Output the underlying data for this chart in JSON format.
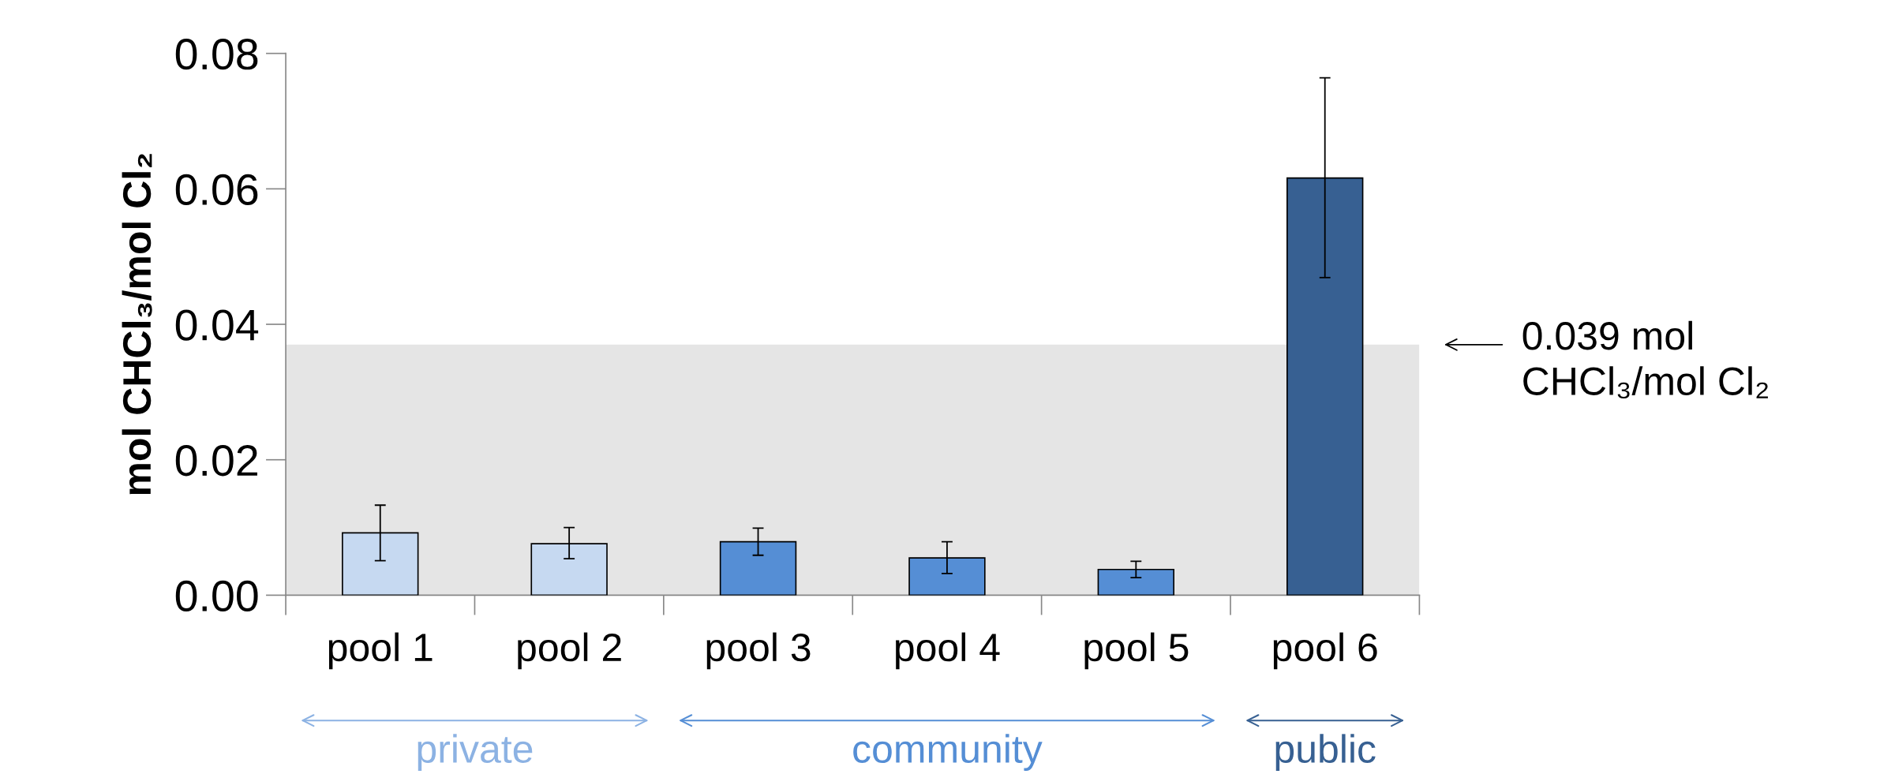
{
  "chart_data": {
    "type": "bar",
    "ylabel": "mol CHCl₃/mol Cl₂",
    "categories": [
      "pool 1",
      "pool 2",
      "pool 3",
      "pool 4",
      "pool 5",
      "pool 6"
    ],
    "values": [
      0.0092,
      0.0076,
      0.0079,
      0.0055,
      0.0038,
      0.0616
    ],
    "errors": [
      [
        0.0051,
        0.0133
      ],
      [
        0.0054,
        0.01
      ],
      [
        0.0059,
        0.0099
      ],
      [
        0.0032,
        0.0079
      ],
      [
        0.0026,
        0.005
      ],
      [
        0.0469,
        0.0764
      ]
    ],
    "colors": [
      "#c6d9f1",
      "#c6d9f1",
      "#558ed5",
      "#558ed5",
      "#558ed5",
      "#376092"
    ],
    "ylim": [
      0,
      0.08
    ],
    "yticks": [
      {
        "value": 0,
        "label": "0.00"
      },
      {
        "value": 0.02,
        "label": "0.02"
      },
      {
        "value": 0.04,
        "label": "0.04"
      },
      {
        "value": 0.06,
        "label": "0.06"
      },
      {
        "value": 0.08,
        "label": "0.08"
      }
    ],
    "bands": [
      {
        "axis": "y",
        "from": 0,
        "to": 0.037,
        "label": "0.039 mol\nCHCl₃/mol Cl₂",
        "color": "#e5e5e5"
      }
    ],
    "annotations": [
      "private",
      "community",
      "public"
    ],
    "grid": false
  }
}
